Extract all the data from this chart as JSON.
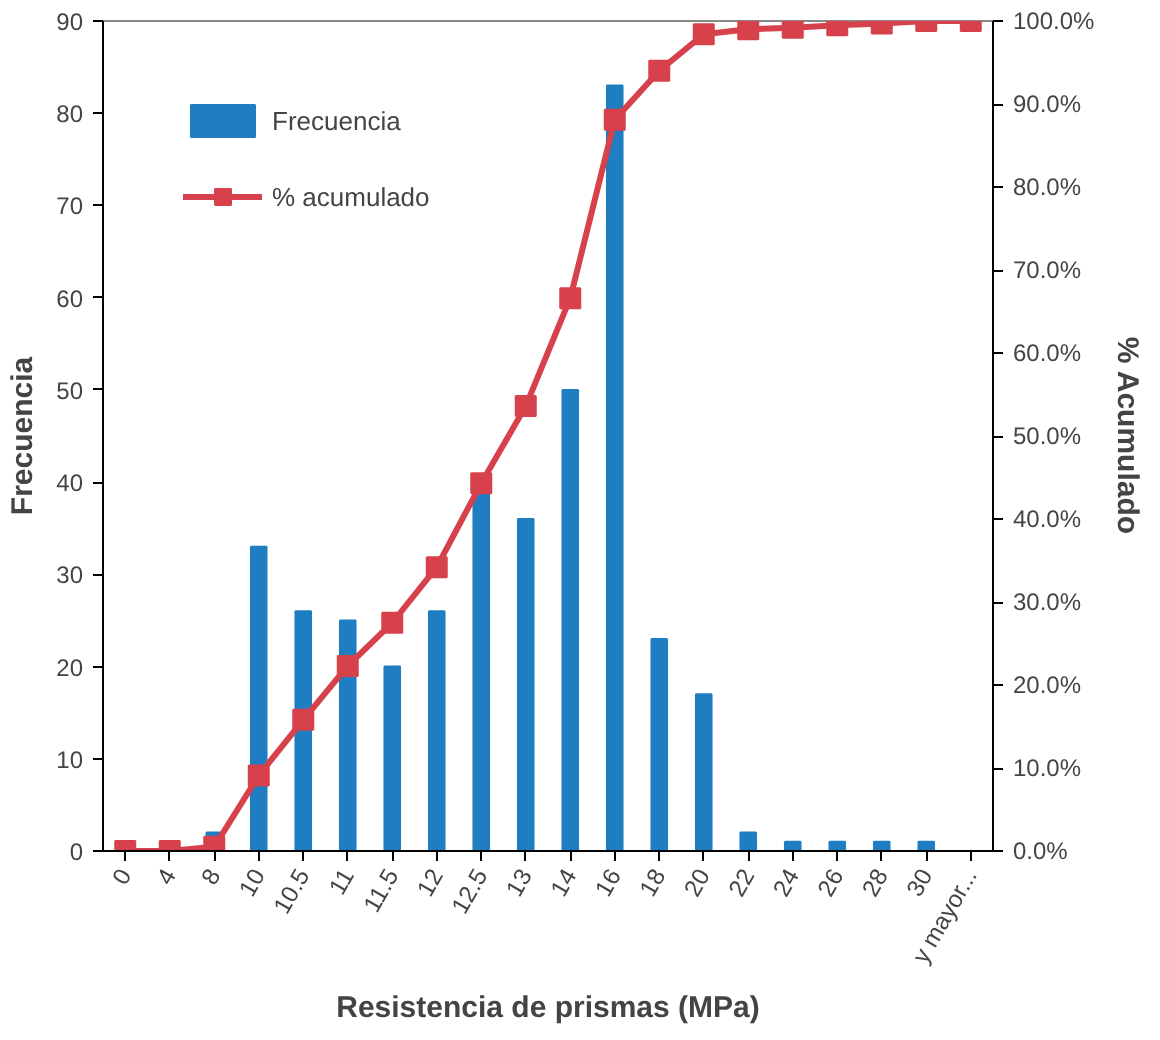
{
  "chart_data": {
    "type": "bar",
    "xlabel": "Resistencia de prismas (MPa)",
    "ylabel": "Frecuencia",
    "y2label": "% Acumulado",
    "categories": [
      "0",
      "4",
      "8",
      "10",
      "10.5",
      "11",
      "11.5",
      "12",
      "12.5",
      "13",
      "14",
      "16",
      "18",
      "20",
      "22",
      "24",
      "26",
      "28",
      "30",
      "y mayor..."
    ],
    "series": [
      {
        "name": "Frecuencia",
        "color": "#1f7dc1",
        "values": [
          0,
          0,
          2,
          33,
          26,
          25,
          20,
          26,
          39,
          36,
          50,
          83,
          23,
          17,
          2,
          1,
          1,
          1,
          1,
          0
        ]
      },
      {
        "name": "% acumulado",
        "type": "line",
        "axis": "y2",
        "color": "#d7414b",
        "marker": "square",
        "values": [
          0,
          0,
          0.5,
          9.1,
          15.8,
          22.3,
          27.5,
          34.2,
          44.3,
          53.6,
          66.6,
          88.1,
          94.0,
          98.4,
          99.0,
          99.2,
          99.5,
          99.7,
          100,
          100
        ]
      }
    ],
    "ylim": [
      0,
      90
    ],
    "yticks": [
      0,
      10,
      20,
      30,
      40,
      50,
      60,
      70,
      80,
      90
    ],
    "y2lim": [
      0,
      100
    ],
    "y2ticks": [
      {
        "value": 0,
        "label": "0.0%"
      },
      {
        "value": 10,
        "label": "10.0%"
      },
      {
        "value": 20,
        "label": "20.0%"
      },
      {
        "value": 30,
        "label": "30.0%"
      },
      {
        "value": 40,
        "label": "40.0%"
      },
      {
        "value": 50,
        "label": "50.0%"
      },
      {
        "value": 60,
        "label": "60.0%"
      },
      {
        "value": 70,
        "label": "70.0%"
      },
      {
        "value": 80,
        "label": "80.0%"
      },
      {
        "value": 90,
        "label": "90.0%"
      },
      {
        "value": 100,
        "label": "100.0%"
      }
    ],
    "grid": false,
    "legend": "top left"
  }
}
